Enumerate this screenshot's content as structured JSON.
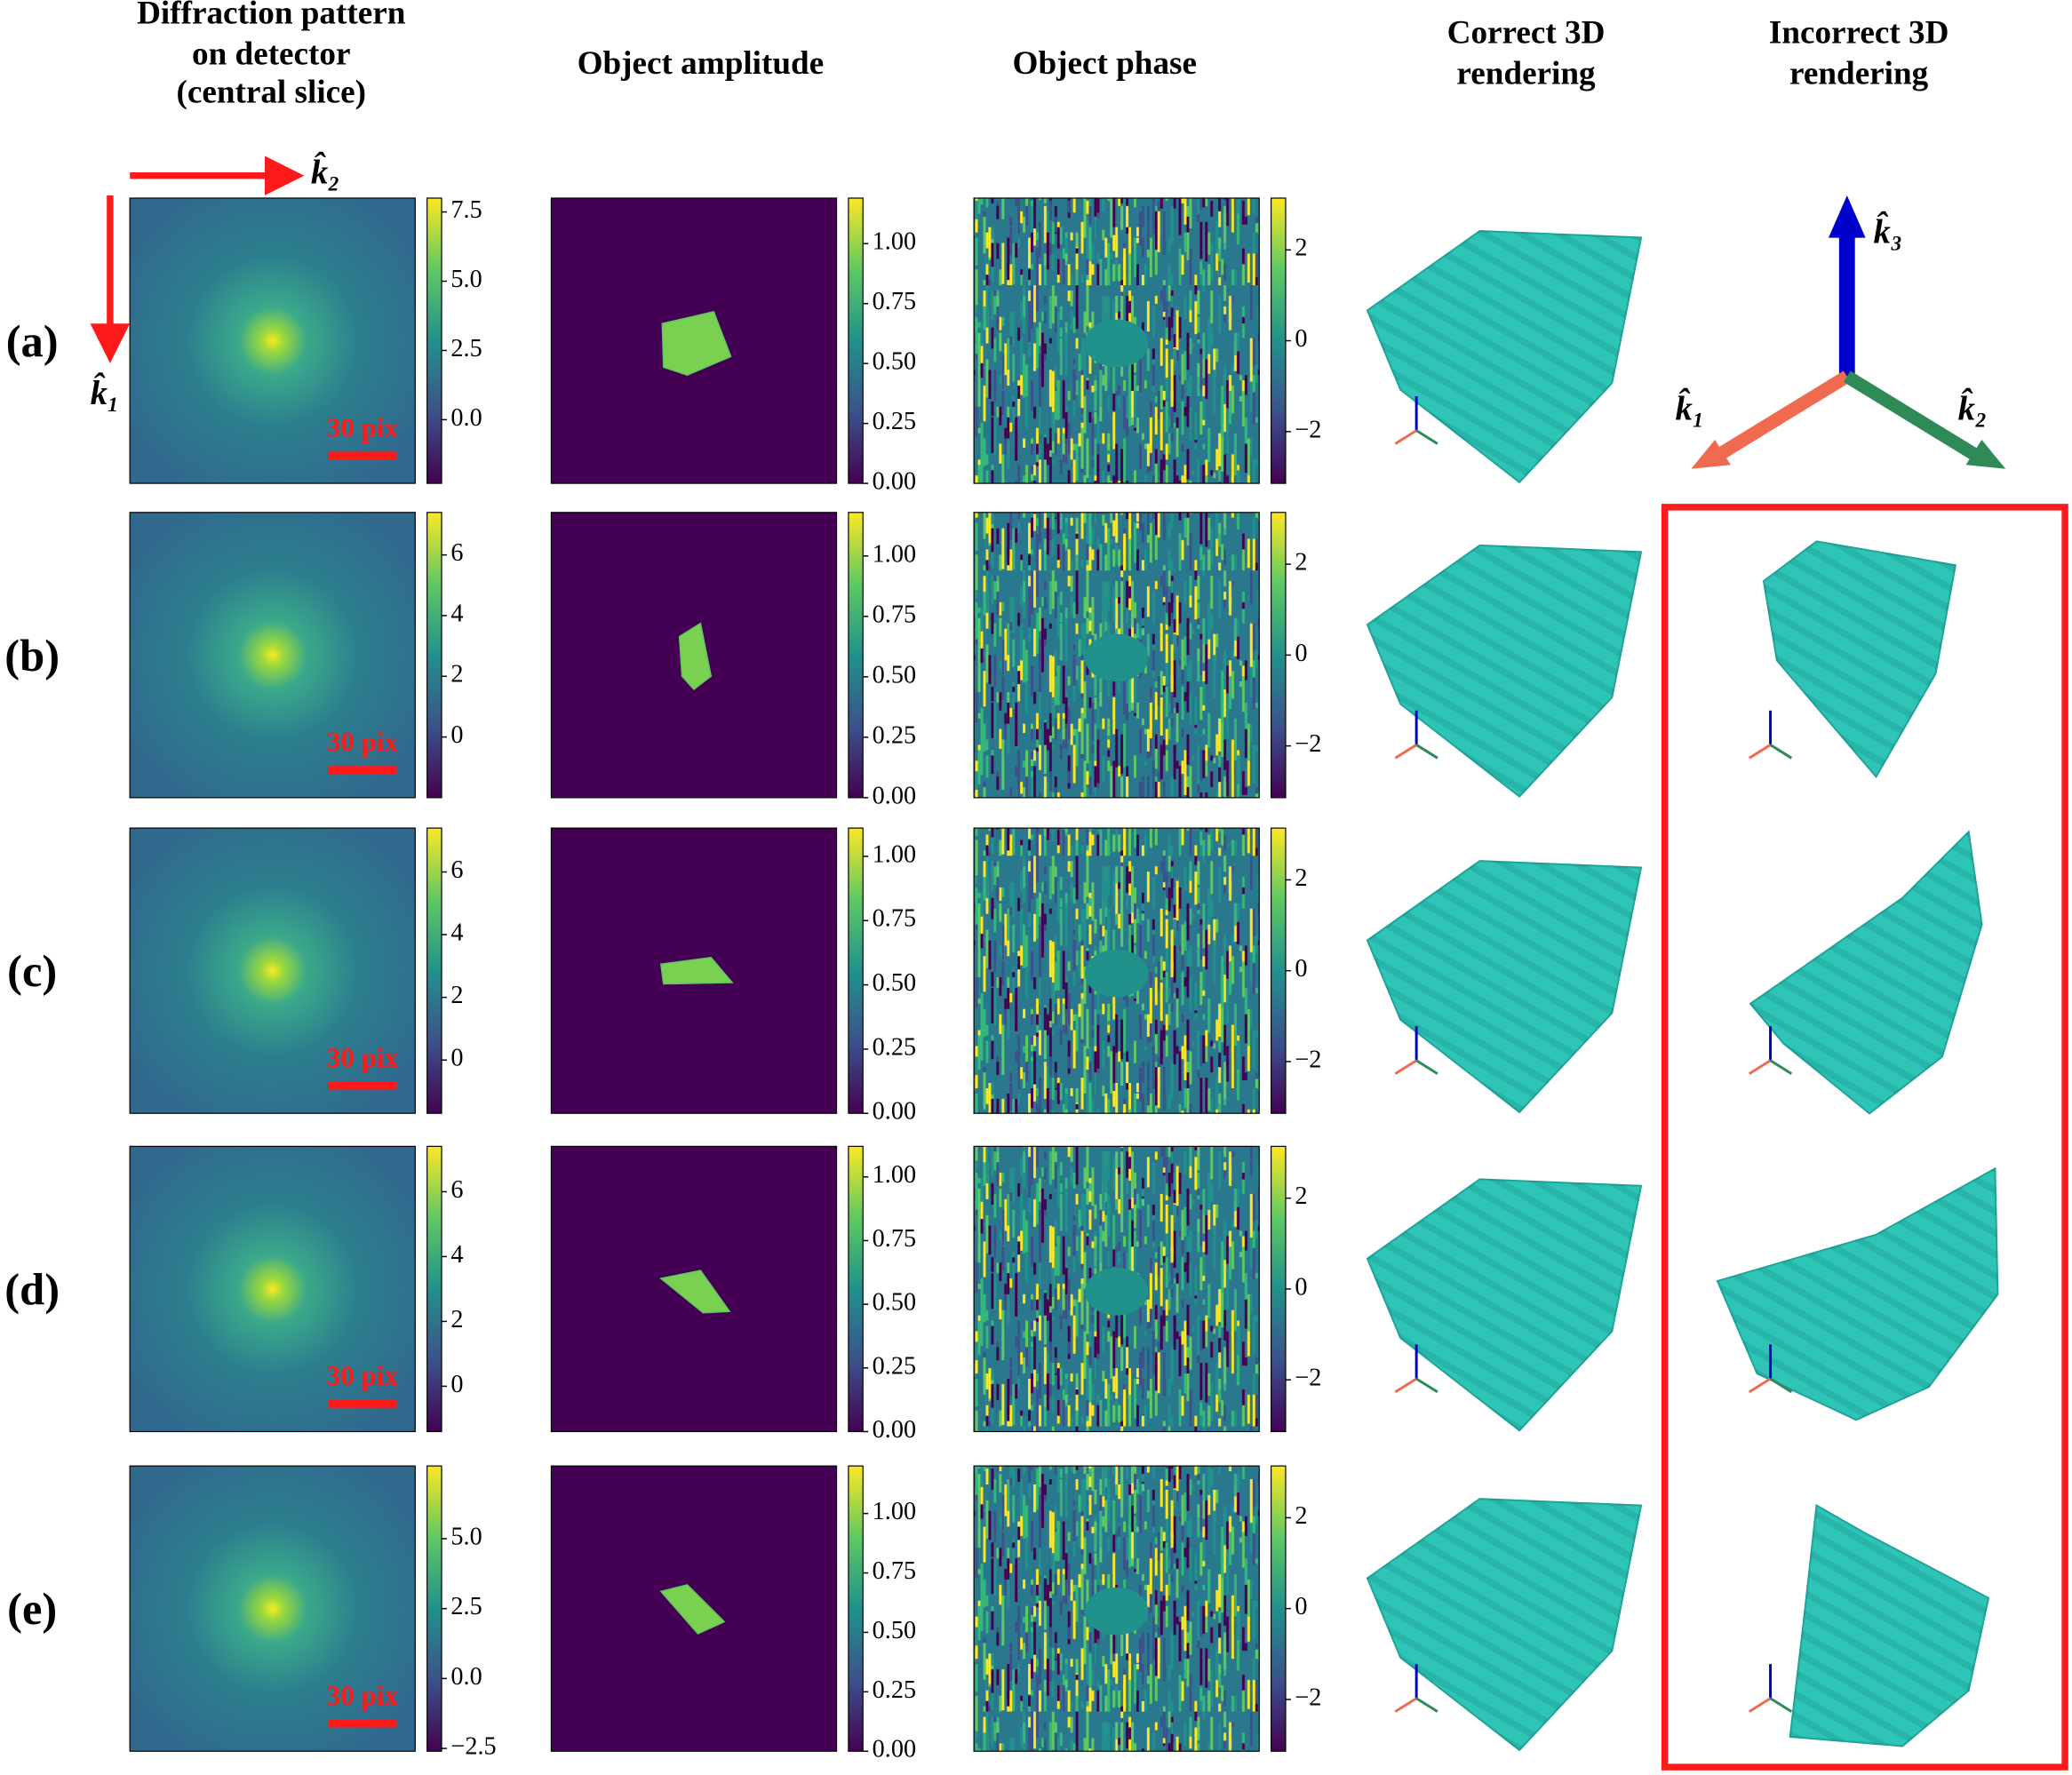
{
  "headers": [
    {
      "lines": [
        "Diffraction pattern",
        "on detector",
        "(central slice)"
      ]
    },
    {
      "lines": [
        "Object amplitude"
      ]
    },
    {
      "lines": [
        "Object phase"
      ]
    },
    {
      "lines": [
        "Correct 3D",
        "rendering"
      ]
    },
    {
      "lines": [
        "Incorrect 3D",
        "rendering"
      ]
    }
  ],
  "axis_labels": {
    "k1": "k̂₁",
    "k2": "k̂₂",
    "k3": "k̂₃"
  },
  "rows": [
    {
      "label": "(a)",
      "scale_bar": "30 pix",
      "diffraction_colorbar": {
        "ylim": [
          -2.3,
          8.0
        ],
        "yticks": [
          7.5,
          {
            "value": 5,
            "label": "5.0"
          },
          2.5,
          {
            "value": 0,
            "label": "0.0"
          }
        ]
      },
      "amplitude_colorbar": {
        "ylim": [
          0,
          1.19
        ],
        "yticks": [
          {
            "value": 1,
            "label": "1.00"
          },
          {
            "value": 0.75,
            "label": "0.75"
          },
          {
            "value": 0.5,
            "label": "0.50"
          },
          {
            "value": 0.25,
            "label": "0.25"
          },
          {
            "value": 0,
            "label": "0.00"
          }
        ]
      },
      "phase_colorbar": {
        "ylim": [
          -3.14,
          3.14
        ],
        "yticks": [
          2,
          0,
          {
            "value": -2,
            "label": "−2"
          }
        ]
      }
    },
    {
      "label": "(b)",
      "scale_bar": "30 pix",
      "diffraction_colorbar": {
        "ylim": [
          -2.0,
          7.4
        ],
        "yticks": [
          6,
          4,
          2,
          0
        ]
      },
      "amplitude_colorbar": {
        "ylim": [
          0,
          1.18
        ],
        "yticks": [
          {
            "value": 1,
            "label": "1.00"
          },
          {
            "value": 0.75,
            "label": "0.75"
          },
          {
            "value": 0.5,
            "label": "0.50"
          },
          {
            "value": 0.25,
            "label": "0.25"
          },
          {
            "value": 0,
            "label": "0.00"
          }
        ]
      },
      "phase_colorbar": {
        "ylim": [
          -3.14,
          3.14
        ],
        "yticks": [
          2,
          0,
          {
            "value": -2,
            "label": "−2"
          }
        ]
      }
    },
    {
      "label": "(c)",
      "scale_bar": "30 pix",
      "diffraction_colorbar": {
        "ylim": [
          -1.7,
          7.4
        ],
        "yticks": [
          6,
          4,
          2,
          0
        ]
      },
      "amplitude_colorbar": {
        "ylim": [
          0,
          1.11
        ],
        "yticks": [
          {
            "value": 1,
            "label": "1.00"
          },
          {
            "value": 0.75,
            "label": "0.75"
          },
          {
            "value": 0.5,
            "label": "0.50"
          },
          {
            "value": 0.25,
            "label": "0.25"
          },
          {
            "value": 0,
            "label": "0.00"
          }
        ]
      },
      "phase_colorbar": {
        "ylim": [
          -3.14,
          3.14
        ],
        "yticks": [
          2,
          0,
          {
            "value": -2,
            "label": "−2"
          }
        ]
      }
    },
    {
      "label": "(d)",
      "scale_bar": "30 pix",
      "diffraction_colorbar": {
        "ylim": [
          -1.4,
          7.4
        ],
        "yticks": [
          6,
          4,
          2,
          0
        ]
      },
      "amplitude_colorbar": {
        "ylim": [
          0,
          1.12
        ],
        "yticks": [
          {
            "value": 1,
            "label": "1.00"
          },
          {
            "value": 0.75,
            "label": "0.75"
          },
          {
            "value": 0.5,
            "label": "0.50"
          },
          {
            "value": 0.25,
            "label": "0.25"
          },
          {
            "value": 0,
            "label": "0.00"
          }
        ]
      },
      "phase_colorbar": {
        "ylim": [
          -3.14,
          3.14
        ],
        "yticks": [
          2,
          0,
          {
            "value": -2,
            "label": "−2"
          }
        ]
      }
    },
    {
      "label": "(e)",
      "scale_bar": "30 pix",
      "diffraction_colorbar": {
        "ylim": [
          -2.6,
          7.6
        ],
        "yticks": [
          {
            "value": 5,
            "label": "5.0"
          },
          2.5,
          {
            "value": 0,
            "label": "0.0"
          },
          {
            "value": -2.5,
            "label": "−2.5"
          }
        ]
      },
      "amplitude_colorbar": {
        "ylim": [
          0,
          1.2
        ],
        "yticks": [
          {
            "value": 1,
            "label": "1.00"
          },
          {
            "value": 0.75,
            "label": "0.75"
          },
          {
            "value": 0.5,
            "label": "0.50"
          },
          {
            "value": 0.25,
            "label": "0.25"
          },
          {
            "value": 0,
            "label": "0.00"
          }
        ]
      },
      "phase_colorbar": {
        "ylim": [
          -3.14,
          3.14
        ],
        "yticks": [
          2,
          0,
          {
            "value": -2,
            "label": "−2"
          }
        ]
      }
    }
  ]
}
